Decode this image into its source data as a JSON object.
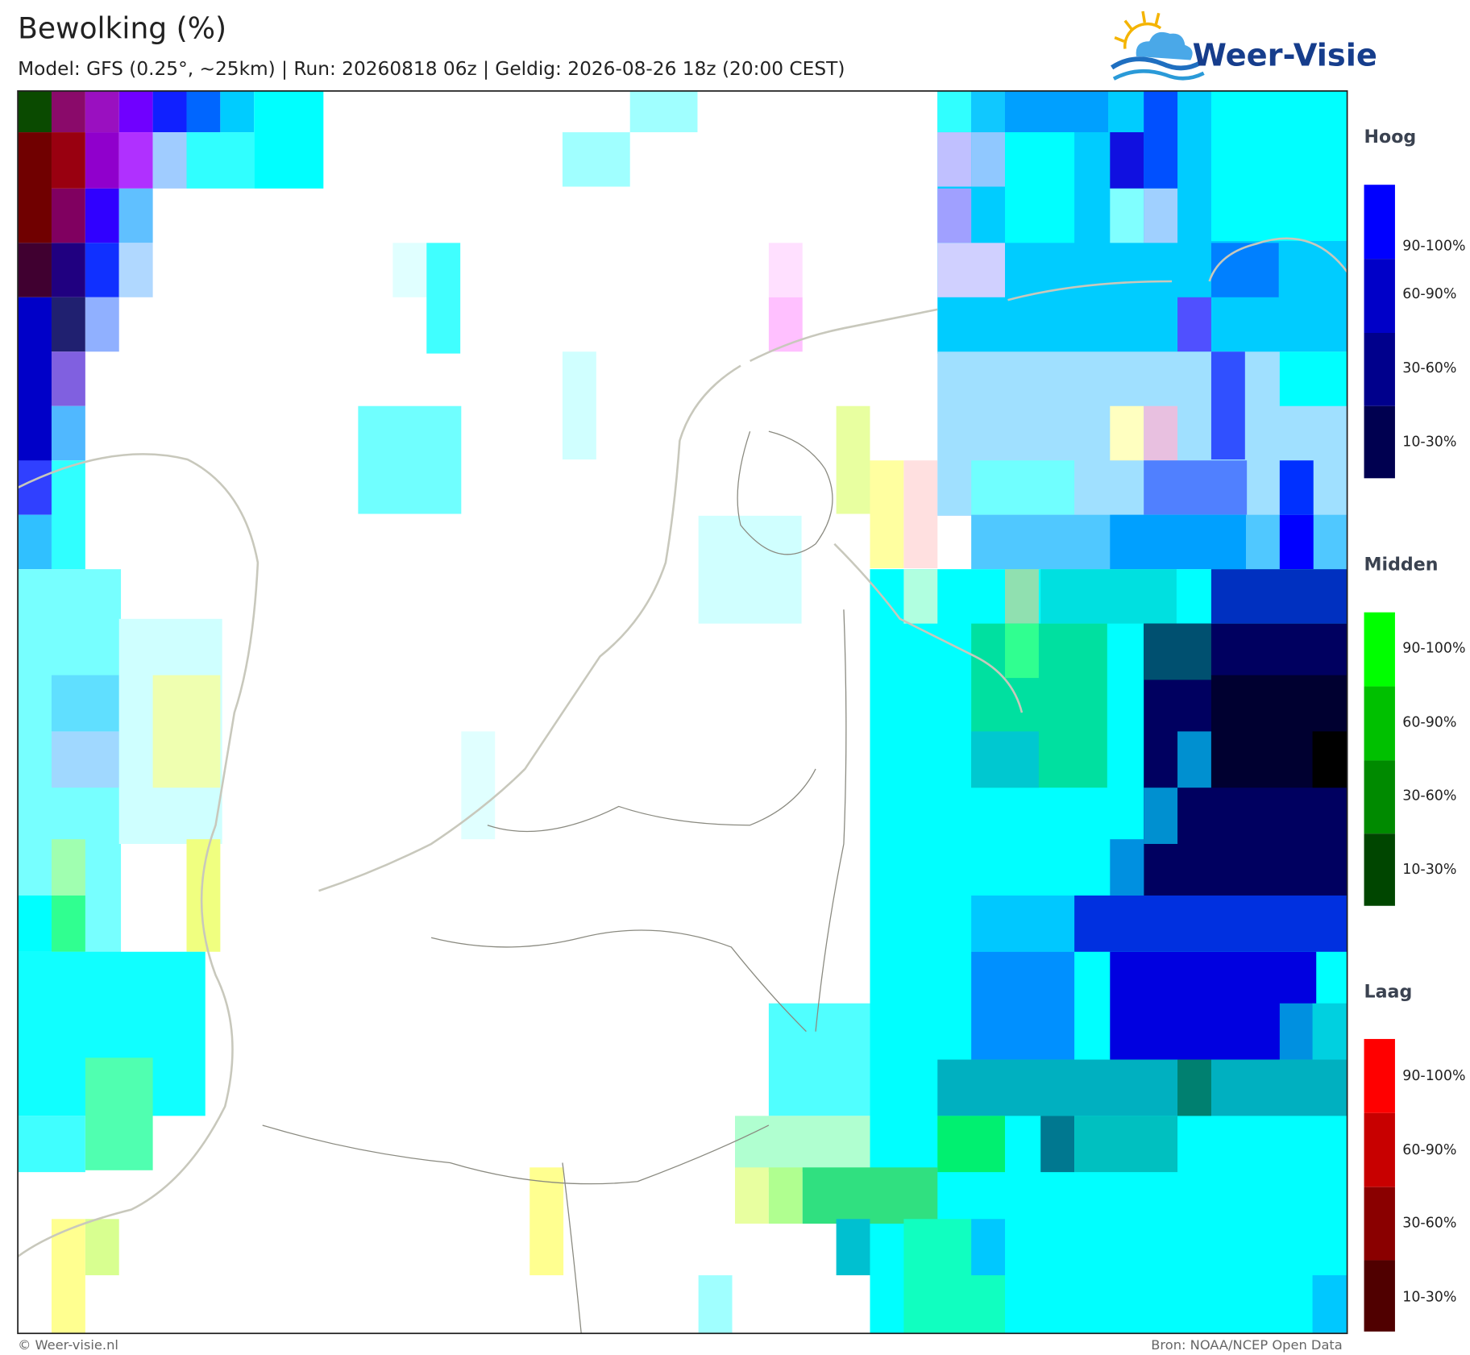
{
  "header": {
    "title": "Bewolking (%)",
    "subtitle": "Model: GFS (0.25°, ~25km)  |  Run: 20260818 06z  |  Geldig: 2026-08-26 18z (20:00 CEST)"
  },
  "logo": {
    "text": "Weer-Visie"
  },
  "legend": {
    "groups": [
      {
        "title": "Hoog",
        "labels": [
          "90-100%",
          "60-90%",
          "30-60%",
          "10-30%"
        ]
      },
      {
        "title": "Midden",
        "labels": [
          "90-100%",
          "60-90%",
          "30-60%",
          "10-30%"
        ]
      },
      {
        "title": "Laag",
        "labels": [
          "90-100%",
          "60-90%",
          "30-60%",
          "10-30%"
        ]
      }
    ]
  },
  "footer": {
    "left": "© Weer-visie.nl",
    "right": "Bron: NOAA/NCEP Open Data"
  }
}
